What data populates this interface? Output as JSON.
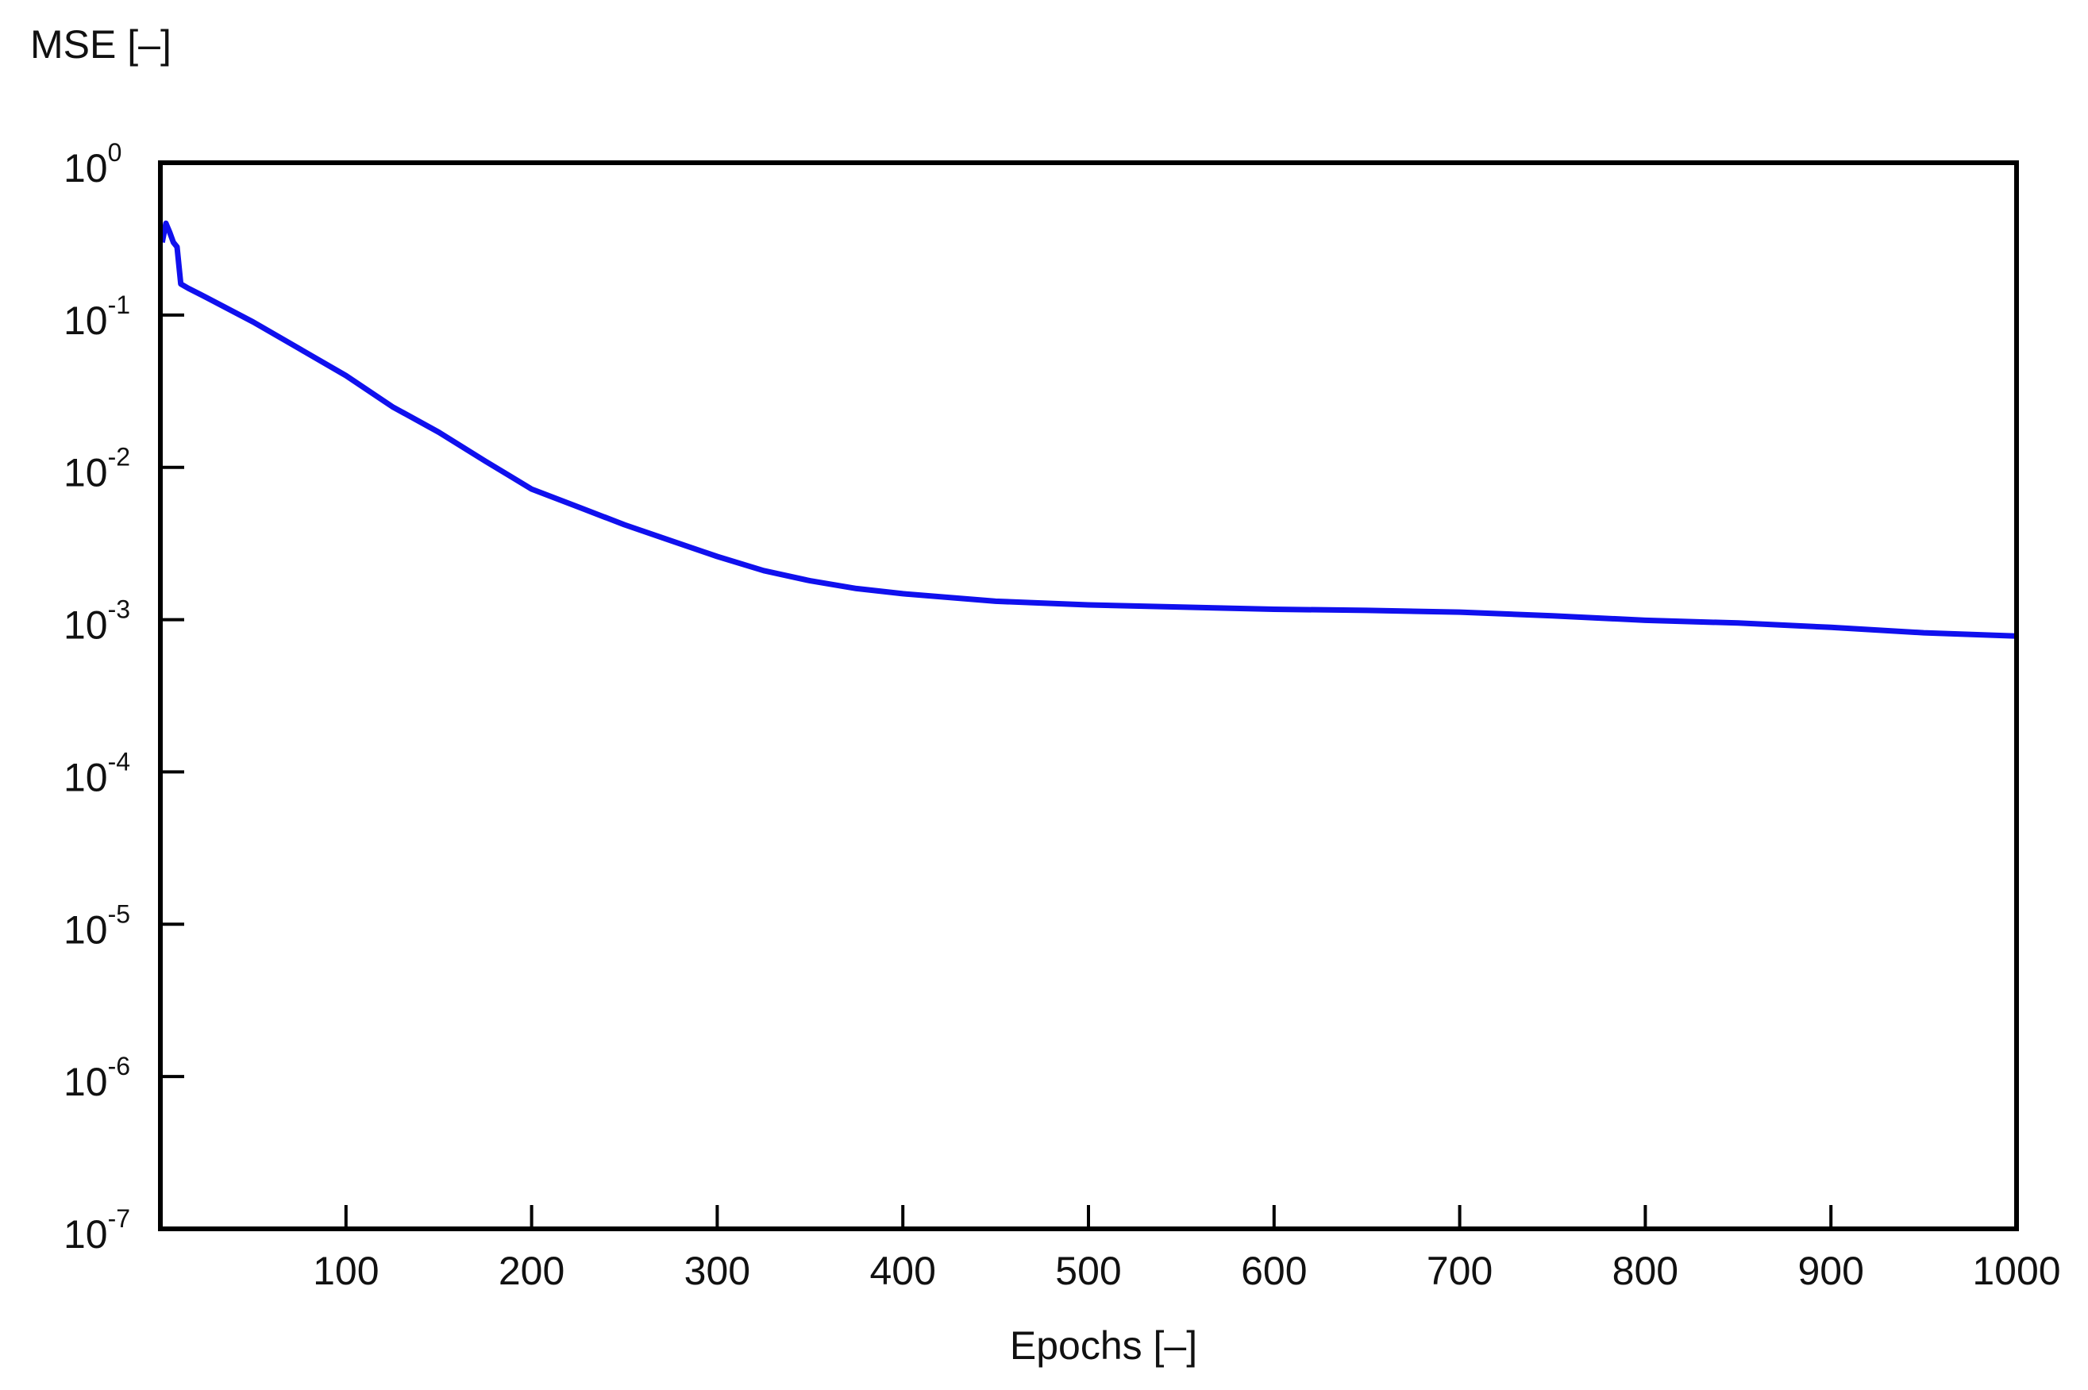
{
  "chart_data": {
    "type": "line",
    "title": "",
    "xlabel": "Epochs [–]",
    "ylabel": "MSE [–]",
    "xlim": [
      0,
      1000
    ],
    "ylim": [
      1e-07,
      1
    ],
    "yscale": "log",
    "grid": false,
    "legend": "none",
    "x_ticks": [
      100,
      200,
      300,
      400,
      500,
      600,
      700,
      800,
      900,
      1000
    ],
    "y_ticks": [
      {
        "base": "10",
        "exp": "0",
        "value": 1
      },
      {
        "base": "10",
        "exp": "-1",
        "value": 0.1
      },
      {
        "base": "10",
        "exp": "-2",
        "value": 0.01
      },
      {
        "base": "10",
        "exp": "-3",
        "value": 0.001
      },
      {
        "base": "10",
        "exp": "-4",
        "value": 0.0001
      },
      {
        "base": "10",
        "exp": "-5",
        "value": 1e-05
      },
      {
        "base": "10",
        "exp": "-6",
        "value": 1e-06
      },
      {
        "base": "10",
        "exp": "-7",
        "value": 1e-07
      }
    ],
    "series": [
      {
        "color": "#1010ee",
        "x": [
          1,
          3,
          5,
          7,
          9,
          11,
          15,
          25,
          50,
          75,
          100,
          125,
          150,
          175,
          200,
          225,
          250,
          275,
          300,
          325,
          350,
          375,
          400,
          450,
          500,
          550,
          600,
          650,
          700,
          750,
          800,
          850,
          900,
          950,
          1000
        ],
        "y": [
          0.3,
          0.4,
          0.35,
          0.3,
          0.28,
          0.16,
          0.15,
          0.13,
          0.09,
          0.06,
          0.04,
          0.025,
          0.017,
          0.011,
          0.0072,
          0.0055,
          0.0042,
          0.0033,
          0.0026,
          0.0021,
          0.0018,
          0.0016,
          0.00148,
          0.00132,
          0.00125,
          0.00121,
          0.00117,
          0.00115,
          0.00112,
          0.00106,
          0.00099,
          0.00095,
          0.00089,
          0.00082,
          0.00078
        ]
      }
    ]
  }
}
